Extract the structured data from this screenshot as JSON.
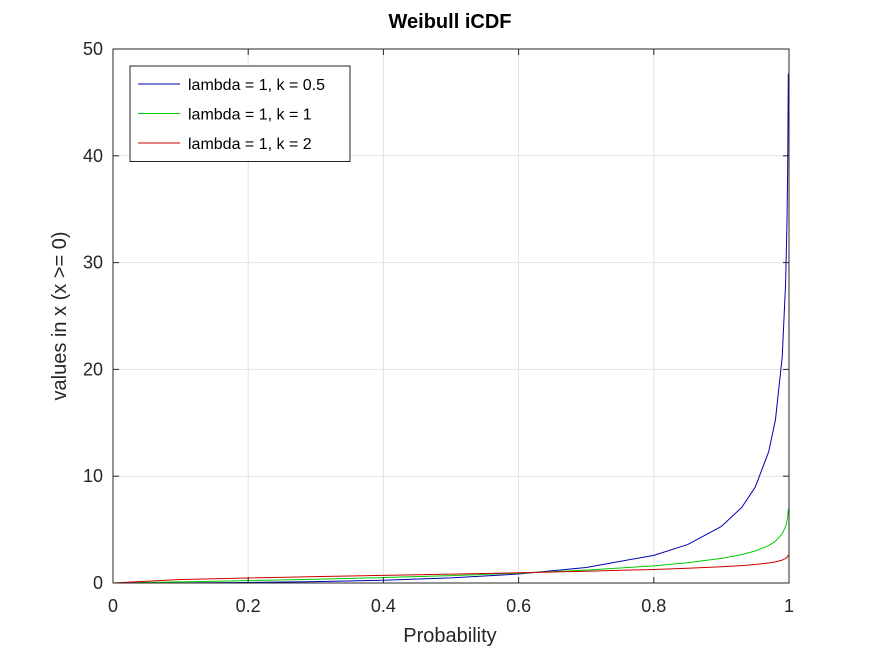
{
  "chart_data": {
    "type": "line",
    "title": "Weibull iCDF",
    "xlabel": "Probability",
    "ylabel": "values in x (x >= 0)",
    "xlim": [
      0,
      1
    ],
    "ylim": [
      0,
      50
    ],
    "xticks": [
      0,
      0.2,
      0.4,
      0.6,
      0.8,
      1
    ],
    "xtick_labels": [
      "0",
      "0.2",
      "0.4",
      "0.6",
      "0.8",
      "1"
    ],
    "yticks": [
      0,
      10,
      20,
      30,
      40,
      50
    ],
    "ytick_labels": [
      "0",
      "10",
      "20",
      "30",
      "40",
      "50"
    ],
    "grid": true,
    "legend_position": "top-left",
    "series": [
      {
        "name": "lambda = 1, k = 0.5",
        "color": "#0000b3",
        "x": [
          0,
          0.1,
          0.2,
          0.3,
          0.4,
          0.5,
          0.6,
          0.7,
          0.8,
          0.85,
          0.9,
          0.93,
          0.95,
          0.97,
          0.98,
          0.99,
          0.995,
          0.997,
          0.998,
          0.999
        ],
        "y": [
          0,
          0.011,
          0.05,
          0.127,
          0.261,
          0.48,
          0.84,
          1.45,
          2.59,
          3.6,
          5.3,
          7.07,
          8.97,
          12.3,
          15.3,
          21.2,
          28.1,
          33.8,
          38.6,
          47.7
        ]
      },
      {
        "name": "lambda = 1, k = 1",
        "color": "#00cc00",
        "x": [
          0,
          0.1,
          0.2,
          0.3,
          0.4,
          0.5,
          0.6,
          0.7,
          0.8,
          0.85,
          0.9,
          0.93,
          0.95,
          0.97,
          0.98,
          0.99,
          0.995,
          0.997,
          0.998,
          0.999
        ],
        "y": [
          0,
          0.105,
          0.223,
          0.357,
          0.511,
          0.693,
          0.916,
          1.204,
          1.609,
          1.897,
          2.303,
          2.659,
          2.996,
          3.507,
          3.912,
          4.605,
          5.298,
          5.809,
          6.215,
          6.908
        ]
      },
      {
        "name": "lambda = 1, k = 2",
        "color": "#cc0000",
        "x": [
          0,
          0.1,
          0.2,
          0.3,
          0.4,
          0.5,
          0.6,
          0.7,
          0.8,
          0.85,
          0.9,
          0.93,
          0.95,
          0.97,
          0.98,
          0.99,
          0.995,
          0.997,
          0.998,
          0.999
        ],
        "y": [
          0,
          0.325,
          0.472,
          0.597,
          0.715,
          0.833,
          0.957,
          1.097,
          1.269,
          1.377,
          1.517,
          1.631,
          1.731,
          1.873,
          1.978,
          2.146,
          2.302,
          2.41,
          2.493,
          2.628
        ]
      }
    ]
  }
}
